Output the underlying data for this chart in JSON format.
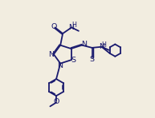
{
  "bg_color": "#f2ede0",
  "line_color": "#1a1a6e",
  "line_width": 1.3,
  "font_size": 6.8,
  "figsize": [
    1.93,
    1.48
  ],
  "dpi": 100,
  "xlim": [
    0,
    10
  ],
  "ylim": [
    0,
    10
  ]
}
